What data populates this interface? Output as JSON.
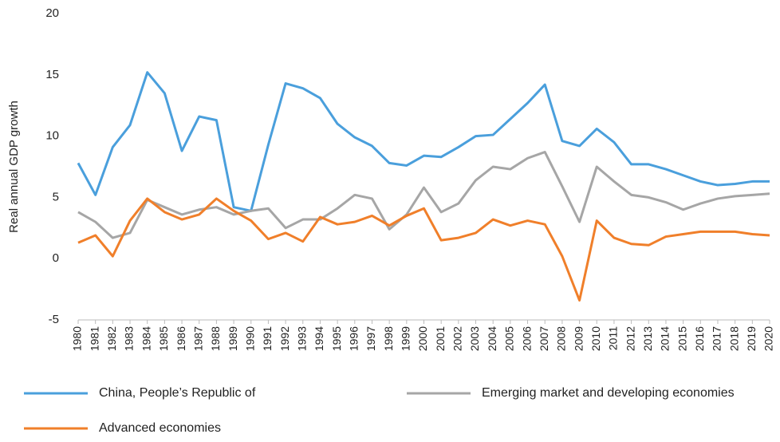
{
  "chart_data": {
    "type": "line",
    "y_label": "Real annual GDP growth",
    "categories": [
      "1980",
      "1981",
      "1982",
      "1983",
      "1984",
      "1985",
      "1986",
      "1987",
      "1988",
      "1989",
      "1990",
      "1991",
      "1992",
      "1993",
      "1994",
      "1995",
      "1996",
      "1997",
      "1998",
      "1999",
      "2000",
      "2001",
      "2002",
      "2003",
      "2004",
      "2005",
      "2006",
      "2007",
      "2008",
      "2009",
      "2010",
      "2011",
      "2012",
      "2013",
      "2014",
      "2015",
      "2016",
      "2017",
      "2018",
      "2019",
      "2020"
    ],
    "series": [
      {
        "name": "China, People’s Republic of",
        "color": "#4a9fdc",
        "values": [
          7.8,
          5.2,
          9.1,
          10.9,
          15.2,
          13.5,
          8.8,
          11.6,
          11.3,
          4.2,
          3.9,
          9.3,
          14.3,
          13.9,
          13.1,
          11.0,
          9.9,
          9.2,
          7.8,
          7.6,
          8.4,
          8.3,
          9.1,
          10.0,
          10.1,
          11.4,
          12.7,
          14.2,
          9.6,
          9.2,
          10.6,
          9.5,
          7.7,
          7.7,
          7.3,
          6.8,
          6.3,
          6.0,
          6.1,
          6.3,
          6.3
        ]
      },
      {
        "name": "Emerging market and developing economies",
        "color": "#a6a6a6",
        "values": [
          3.8,
          3.0,
          1.7,
          2.1,
          4.8,
          4.2,
          3.6,
          4.0,
          4.2,
          3.6,
          3.9,
          4.1,
          2.5,
          3.2,
          3.2,
          4.1,
          5.2,
          4.9,
          2.4,
          3.6,
          5.8,
          3.8,
          4.5,
          6.4,
          7.5,
          7.3,
          8.2,
          8.7,
          5.9,
          3.0,
          7.5,
          6.3,
          5.2,
          5.0,
          4.6,
          4.0,
          4.5,
          4.9,
          5.1,
          5.2,
          5.3
        ]
      },
      {
        "name": "Advanced economies",
        "color": "#f07f2a",
        "values": [
          1.3,
          1.9,
          0.2,
          3.1,
          4.9,
          3.8,
          3.2,
          3.6,
          4.9,
          3.9,
          3.1,
          1.6,
          2.1,
          1.4,
          3.4,
          2.8,
          3.0,
          3.5,
          2.7,
          3.5,
          4.1,
          1.5,
          1.7,
          2.1,
          3.2,
          2.7,
          3.1,
          2.8,
          0.2,
          -3.4,
          3.1,
          1.7,
          1.2,
          1.1,
          1.8,
          2.0,
          2.2,
          2.2,
          2.2,
          2.0,
          1.9
        ]
      }
    ],
    "ylim": [
      -5,
      20
    ],
    "yticks": [
      -5,
      0,
      5,
      10,
      15,
      20
    ],
    "grid": false,
    "legend": "bottom"
  }
}
